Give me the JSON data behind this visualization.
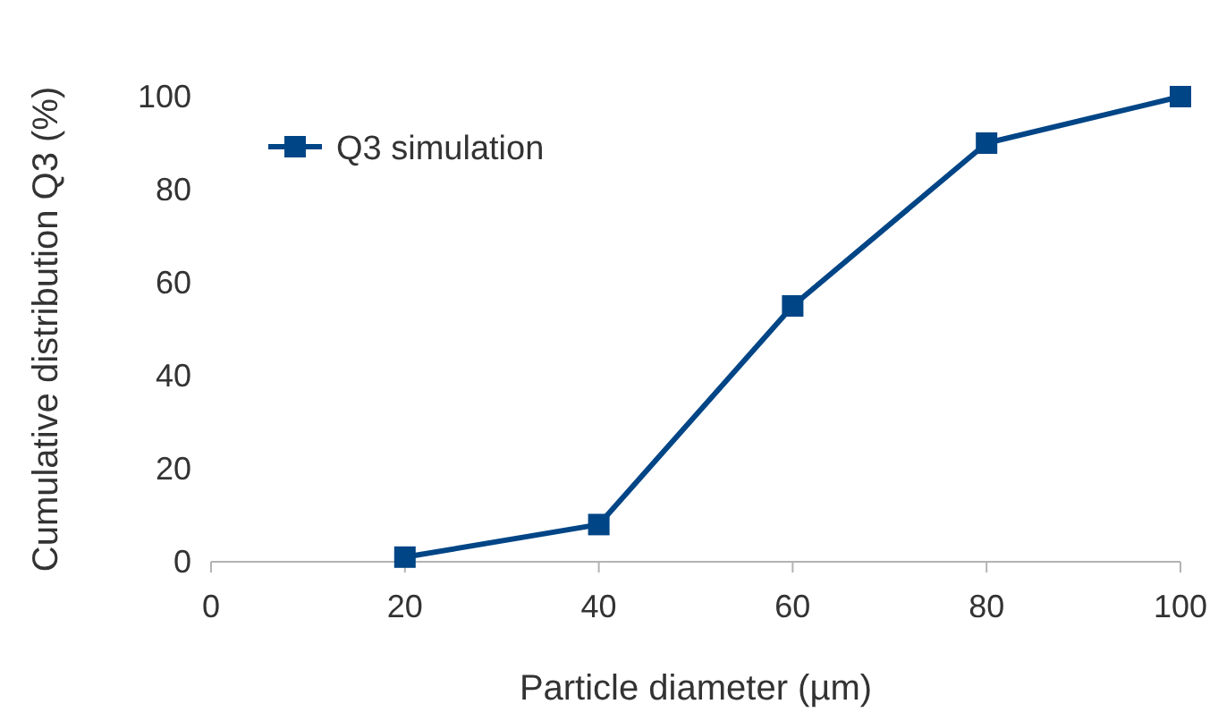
{
  "chart_data": {
    "type": "line",
    "xlabel": "Particle diameter (µm)",
    "ylabel": "Cumulative distribution Q3 (%)",
    "x": [
      20,
      40,
      60,
      80,
      100
    ],
    "series": [
      {
        "name": "Q3 simulation",
        "color": "#004586",
        "values": [
          1,
          8,
          55,
          90,
          100
        ]
      }
    ],
    "xlim": [
      0,
      100
    ],
    "xticks": [
      0,
      20,
      40,
      60,
      80,
      100
    ],
    "ylim": [
      0,
      100
    ],
    "yticks": [
      0,
      20,
      40,
      60,
      80,
      100
    ],
    "marker": "square",
    "line_style": "solid",
    "legend": "top left",
    "grid": false
  }
}
